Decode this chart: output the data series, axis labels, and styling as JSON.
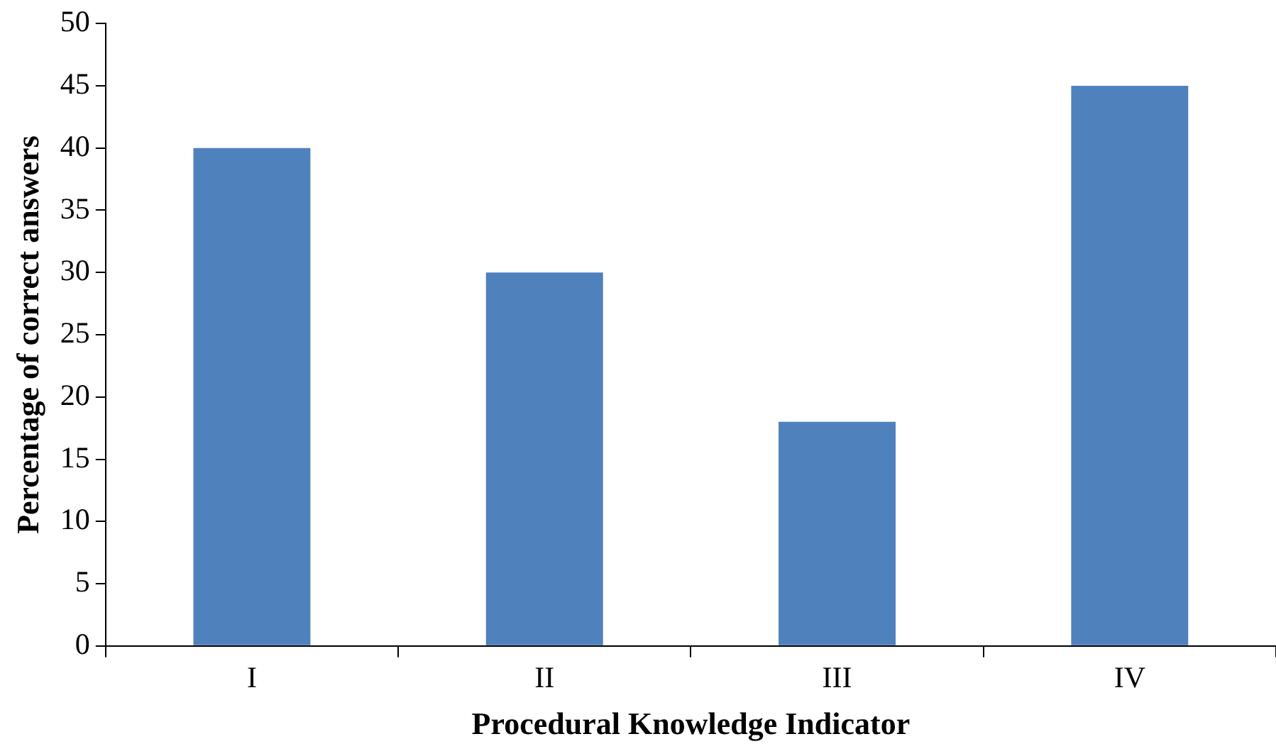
{
  "chart_data": {
    "type": "bar",
    "xlabel": "Procedural Knowledge Indicator",
    "ylabel": "Percentage of correct answers",
    "categories": [
      "I",
      "II",
      "III",
      "IV"
    ],
    "values": [
      40,
      30,
      18,
      45
    ],
    "color": "#4f81bd",
    "ylim": [
      0,
      50
    ],
    "yticks": [
      0,
      5,
      10,
      15,
      20,
      25,
      30,
      35,
      40,
      45,
      50
    ],
    "grid": false,
    "legend": false
  }
}
